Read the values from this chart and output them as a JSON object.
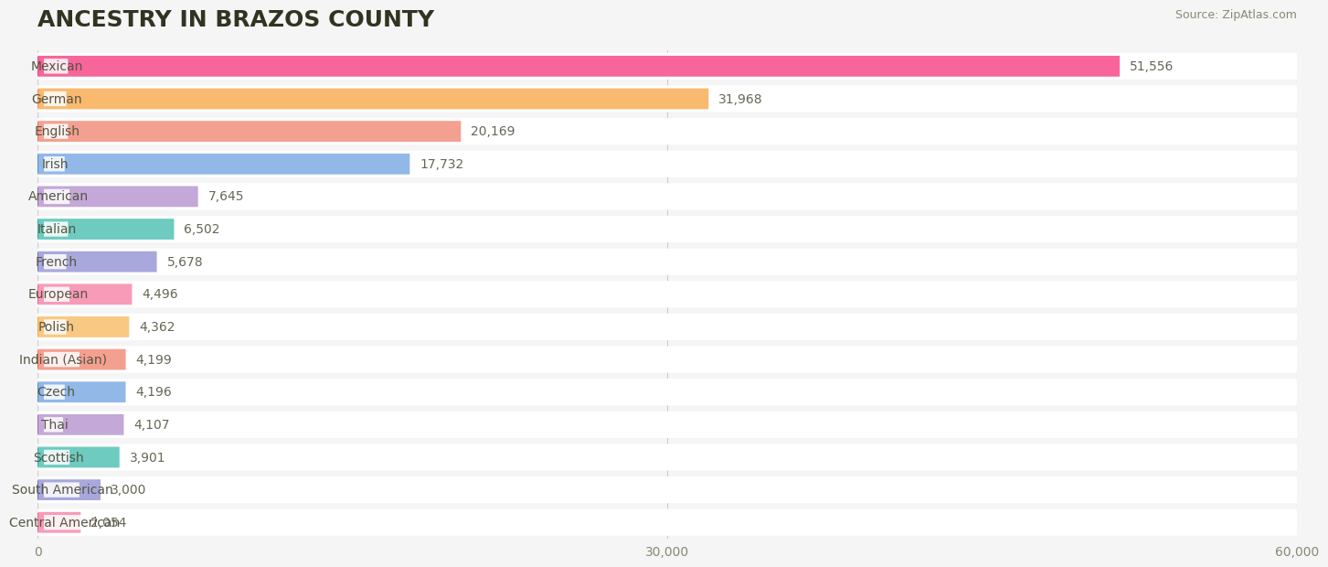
{
  "title": "ANCESTRY IN BRAZOS COUNTY",
  "source": "Source: ZipAtlas.com",
  "categories": [
    "Mexican",
    "German",
    "English",
    "Irish",
    "American",
    "Italian",
    "French",
    "European",
    "Polish",
    "Indian (Asian)",
    "Czech",
    "Thai",
    "Scottish",
    "South American",
    "Central American"
  ],
  "values": [
    51556,
    31968,
    20169,
    17732,
    7645,
    6502,
    5678,
    4496,
    4362,
    4199,
    4196,
    4107,
    3901,
    3000,
    2054
  ],
  "bar_colors": [
    "#F7659A",
    "#F9B96E",
    "#F4A090",
    "#92B8E8",
    "#C4A8D8",
    "#6DCBBF",
    "#A8A8DC",
    "#F79BB8",
    "#F9C882",
    "#F4A090",
    "#92B8E8",
    "#C4A8D8",
    "#6DCBBF",
    "#A8A8DC",
    "#F79BB8"
  ],
  "circle_colors": [
    "#F04080",
    "#F09040",
    "#E87060",
    "#5090D0",
    "#9070B8",
    "#30B0A0",
    "#7070C0",
    "#F06090",
    "#F0A840",
    "#E87060",
    "#5090D0",
    "#9070B8",
    "#30B0A0",
    "#7070C0",
    "#F06090"
  ],
  "background_color": "#f5f5f5",
  "bar_row_bg": "#ffffff",
  "xlim": [
    0,
    60000
  ],
  "xticks": [
    0,
    30000,
    60000
  ],
  "xtick_labels": [
    "0",
    "30,000",
    "60,000"
  ],
  "title_fontsize": 18,
  "label_fontsize": 10,
  "value_fontsize": 10
}
